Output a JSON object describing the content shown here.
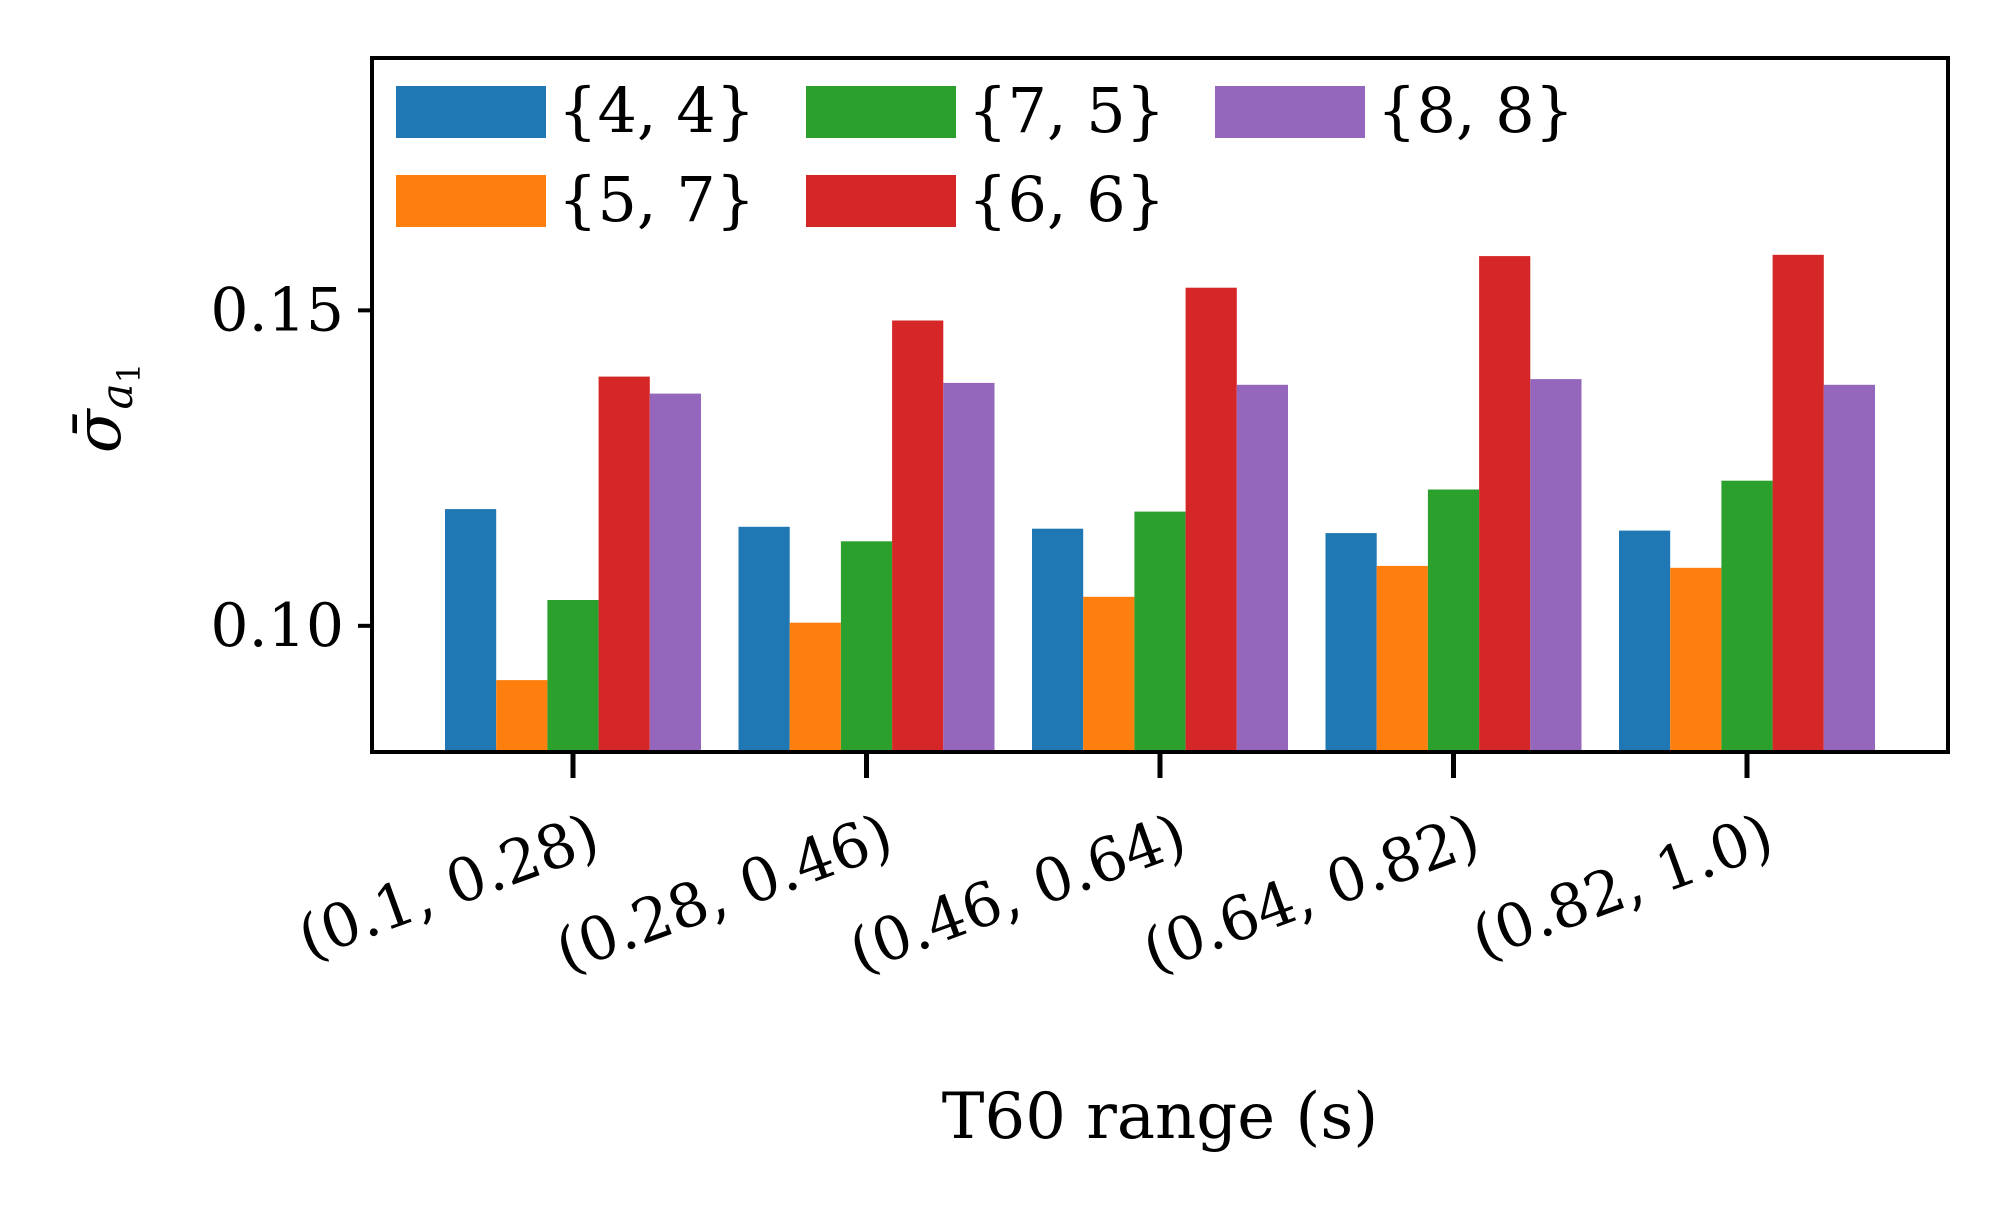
{
  "chart_data": {
    "type": "bar",
    "title": "",
    "xlabel": "T60 range (s)",
    "ylabel_symbol": "σ̄",
    "ylabel_subscript_main": "a",
    "ylabel_subscript_index": "1",
    "categories": [
      "(0.1, 0.28)",
      "(0.28, 0.46)",
      "(0.46, 0.64)",
      "(0.64, 0.82)",
      "(0.82, 1.0)"
    ],
    "ylim": [
      0.08,
      0.19
    ],
    "yticks": [
      0.1,
      0.15
    ],
    "ytick_labels": [
      "0.10",
      "0.15"
    ],
    "grid": false,
    "legend_position": "top-left",
    "legend_columns": 3,
    "series": [
      {
        "name": "{4, 4}",
        "color": "#1f77b4",
        "values": [
          0.1185,
          0.1157,
          0.1154,
          0.1147,
          0.1151
        ]
      },
      {
        "name": "{5, 7}",
        "color": "#ff7f0e",
        "values": [
          0.0914,
          0.1005,
          0.1046,
          0.1095,
          0.1092
        ]
      },
      {
        "name": "{7, 5}",
        "color": "#2ca02c",
        "values": [
          0.1041,
          0.1134,
          0.1181,
          0.1216,
          0.123
        ]
      },
      {
        "name": "{6, 6}",
        "color": "#d62728",
        "values": [
          0.1395,
          0.1484,
          0.1536,
          0.1586,
          0.1588
        ]
      },
      {
        "name": "{8, 8}",
        "color": "#9467bd",
        "values": [
          0.1368,
          0.1385,
          0.1382,
          0.1391,
          0.1382
        ]
      }
    ]
  }
}
